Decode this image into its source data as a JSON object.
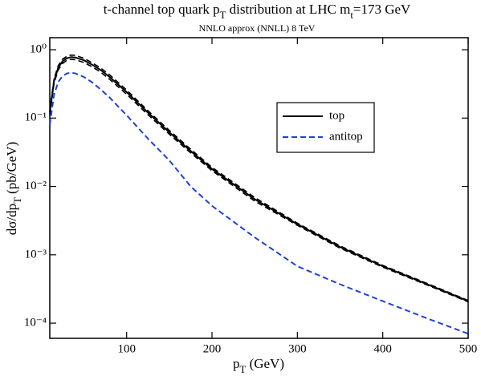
{
  "chart_data": {
    "type": "line",
    "title": [
      {
        "text": "t-channel top quark p"
      },
      {
        "text": "T",
        "sub": true
      },
      {
        "text": " distribution at LHC    m"
      },
      {
        "text": "t",
        "sub": true
      },
      {
        "text": "=173 GeV"
      }
    ],
    "subtitle": "NNLO approx (NNLL)      8 TeV",
    "xlabel": [
      {
        "text": "p"
      },
      {
        "text": "T",
        "sub": true
      },
      {
        "text": " (GeV)"
      }
    ],
    "ylabel": [
      {
        "text": "dσ/dp"
      },
      {
        "text": "T",
        "sub": true
      },
      {
        "text": " (pb/GeV)"
      }
    ],
    "x": [
      10,
      15,
      20,
      25,
      30,
      35,
      40,
      50,
      60,
      70,
      80,
      100,
      125,
      150,
      175,
      200,
      250,
      300,
      350,
      400,
      450,
      500
    ],
    "series": [
      {
        "name": "top",
        "color": "#000000",
        "dash": false,
        "values": [
          0.12,
          0.35,
          0.55,
          0.68,
          0.75,
          0.78,
          0.77,
          0.7,
          0.6,
          0.5,
          0.4,
          0.24,
          0.12,
          0.062,
          0.033,
          0.018,
          0.0065,
          0.0028,
          0.0013,
          0.00068,
          0.00038,
          0.00021
        ],
        "upper": [
          0.128,
          0.375,
          0.59,
          0.73,
          0.8,
          0.835,
          0.825,
          0.75,
          0.64,
          0.535,
          0.43,
          0.257,
          0.128,
          0.066,
          0.035,
          0.019,
          0.0069,
          0.0029,
          0.00135,
          0.0007,
          0.00039,
          0.000215
        ],
        "lower": [
          0.112,
          0.325,
          0.51,
          0.63,
          0.7,
          0.725,
          0.715,
          0.65,
          0.56,
          0.465,
          0.37,
          0.223,
          0.112,
          0.058,
          0.031,
          0.017,
          0.0061,
          0.0027,
          0.00125,
          0.00066,
          0.00037,
          0.000205
        ]
      },
      {
        "name": "antitop",
        "color": "#1f3fe0",
        "dash": true,
        "values": [
          0.08,
          0.22,
          0.34,
          0.41,
          0.45,
          0.46,
          0.45,
          0.4,
          0.33,
          0.26,
          0.2,
          0.11,
          0.05,
          0.024,
          0.01,
          0.0052,
          0.0018,
          0.00068,
          0.00037,
          0.00021,
          0.00012,
          7e-05
        ]
      }
    ],
    "xlim": [
      10,
      500
    ],
    "ylim": [
      6e-05,
      1.5
    ],
    "log_y": true,
    "xticks": [
      100,
      200,
      300,
      400,
      500
    ],
    "yticks": [
      {
        "value": 1,
        "label": "10⁰"
      },
      {
        "value": 0.1,
        "label": "10⁻¹"
      },
      {
        "value": 0.01,
        "label": "10⁻²"
      },
      {
        "value": 0.001,
        "label": "10⁻³"
      },
      {
        "value": 0.0001,
        "label": "10⁻⁴"
      }
    ],
    "grid": false
  }
}
